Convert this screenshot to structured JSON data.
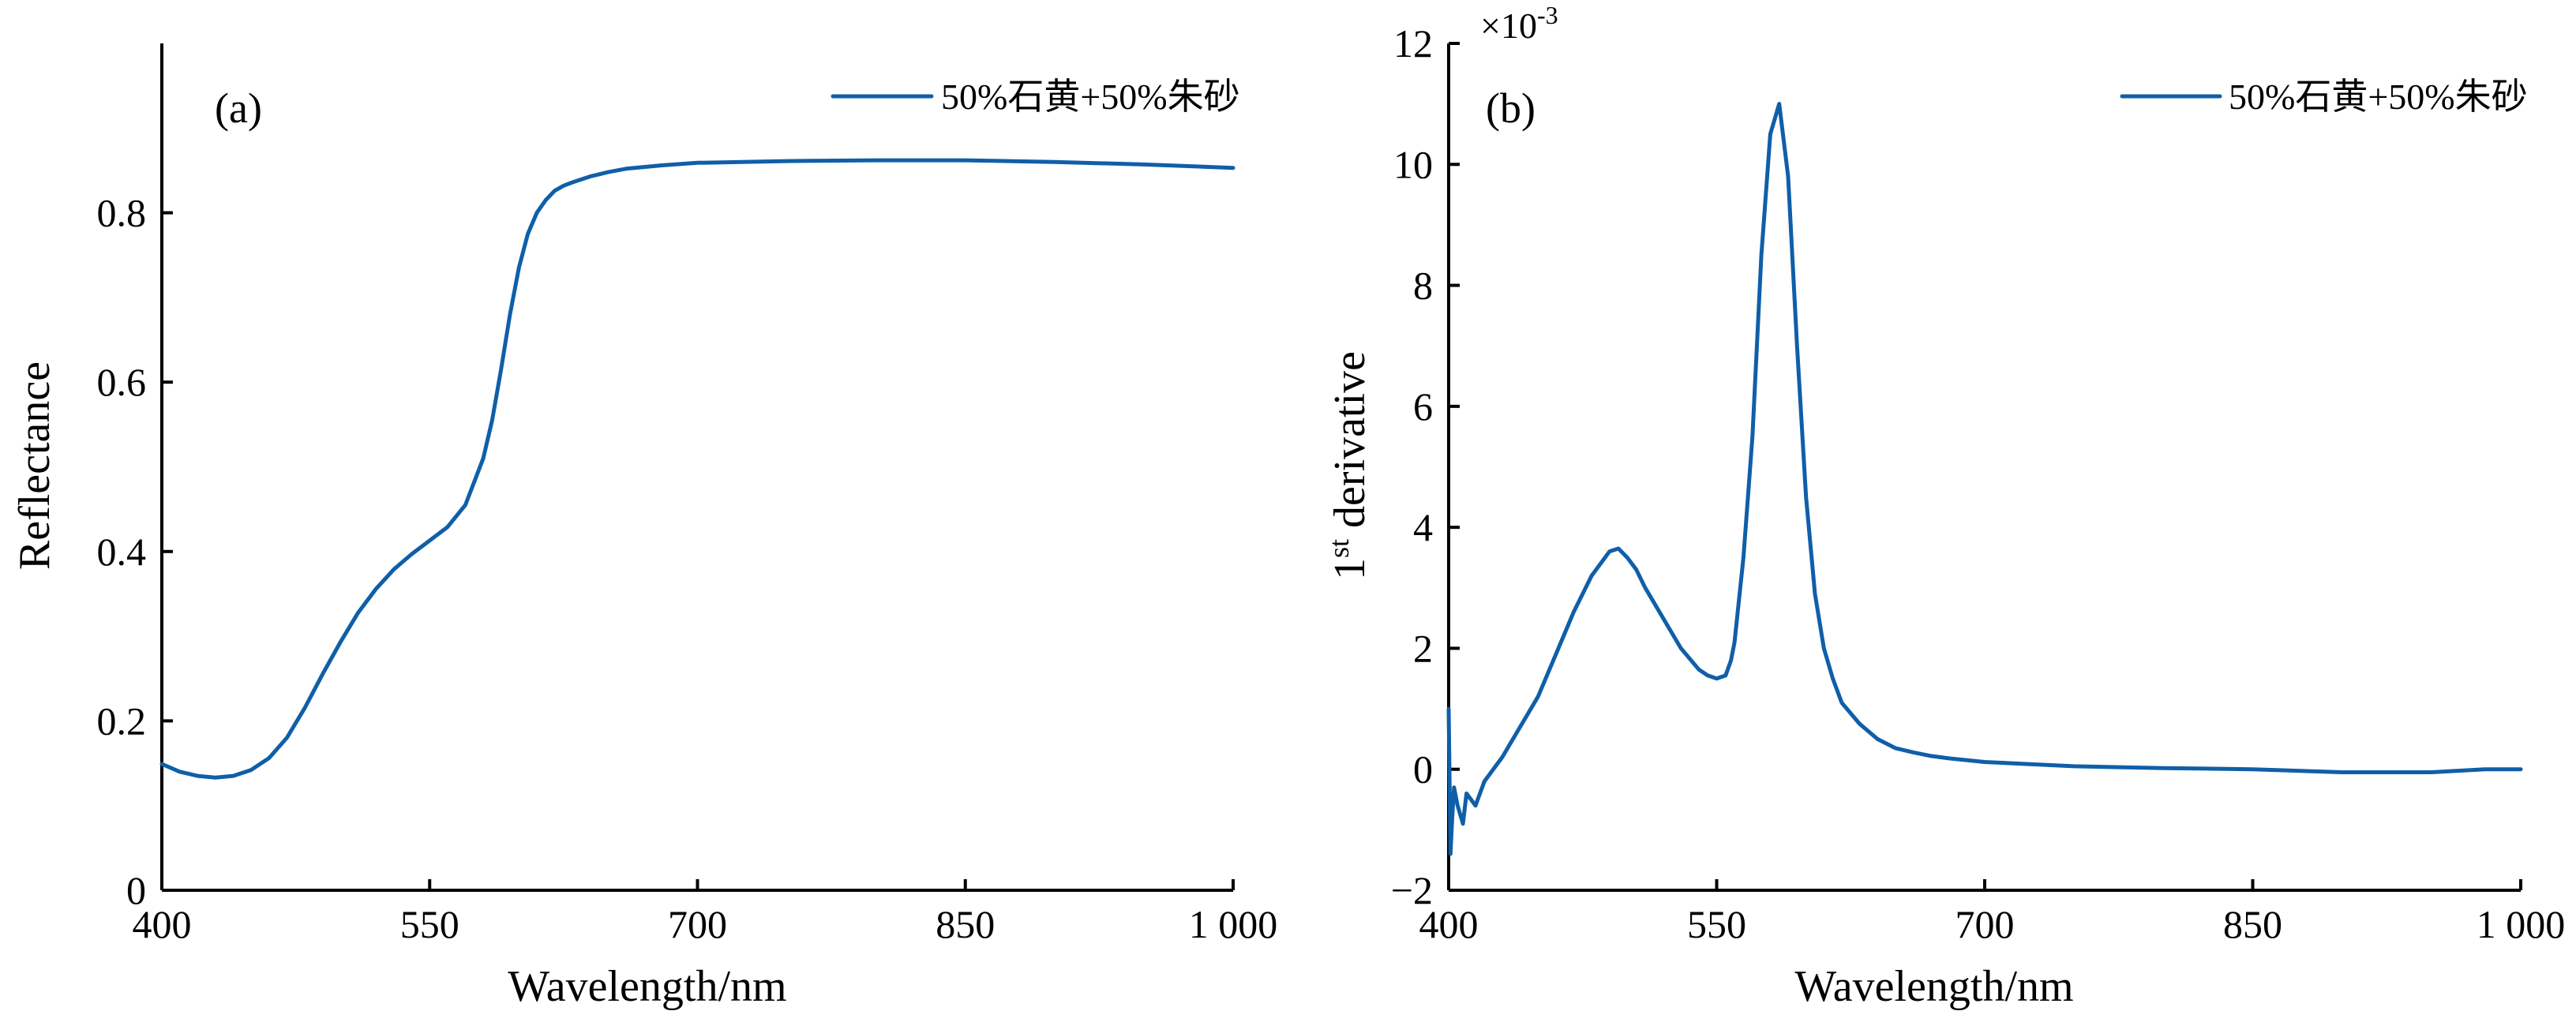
{
  "colors": {
    "series": "#0f5fa8",
    "axis": "#000000"
  },
  "chart_data": [
    {
      "type": "line",
      "panel_label": "(a)",
      "xlabel": "Wavelength/nm",
      "ylabel": "Reflectance",
      "xlim": [
        400,
        1000
      ],
      "ylim": [
        0,
        1.0
      ],
      "x_ticks": [
        400,
        550,
        700,
        850,
        1000
      ],
      "x_tick_labels": [
        "400",
        "550",
        "700",
        "850",
        "1 000"
      ],
      "y_ticks": [
        0,
        0.2,
        0.4,
        0.6,
        0.8
      ],
      "y_tick_labels": [
        "0",
        "0.2",
        "0.4",
        "0.6",
        "0.8"
      ],
      "grid": false,
      "legend": {
        "position": "top-right",
        "entries": [
          "50%石黄+50%朱砂"
        ]
      },
      "series": [
        {
          "name": "50%石黄+50%朱砂",
          "x": [
            400,
            410,
            420,
            430,
            440,
            450,
            460,
            470,
            480,
            490,
            500,
            510,
            520,
            530,
            540,
            550,
            560,
            570,
            580,
            585,
            590,
            595,
            600,
            605,
            610,
            615,
            620,
            625,
            630,
            640,
            650,
            660,
            680,
            700,
            750,
            800,
            850,
            900,
            950,
            1000
          ],
          "y": [
            0.149,
            0.14,
            0.135,
            0.133,
            0.135,
            0.142,
            0.156,
            0.18,
            0.215,
            0.255,
            0.293,
            0.328,
            0.356,
            0.379,
            0.397,
            0.413,
            0.429,
            0.455,
            0.51,
            0.555,
            0.615,
            0.68,
            0.735,
            0.775,
            0.8,
            0.815,
            0.826,
            0.832,
            0.836,
            0.843,
            0.848,
            0.852,
            0.856,
            0.859,
            0.861,
            0.862,
            0.862,
            0.86,
            0.857,
            0.853
          ]
        }
      ]
    },
    {
      "type": "line",
      "panel_label": "(b)",
      "xlabel": "Wavelength/nm",
      "ylabel_base": "1",
      "ylabel_sup": "st",
      "ylabel_rest": " derivative",
      "scale_note": "×10",
      "scale_exp": "-3",
      "xlim": [
        400,
        1000
      ],
      "ylim": [
        -2,
        12
      ],
      "x_ticks": [
        400,
        550,
        700,
        850,
        1000
      ],
      "x_tick_labels": [
        "400",
        "550",
        "700",
        "850",
        "1 000"
      ],
      "y_ticks": [
        -2,
        0,
        2,
        4,
        6,
        8,
        10,
        12
      ],
      "y_tick_labels": [
        "−2",
        "0",
        "2",
        "4",
        "6",
        "8",
        "10",
        "12"
      ],
      "grid": false,
      "legend": {
        "position": "top-right",
        "entries": [
          "50%石黄+50%朱砂"
        ]
      },
      "series": [
        {
          "name": "50%石黄+50%朱砂",
          "x": [
            400,
            401,
            402,
            403,
            405,
            408,
            410,
            415,
            420,
            430,
            440,
            450,
            460,
            470,
            480,
            490,
            495,
            500,
            505,
            510,
            520,
            530,
            540,
            545,
            550,
            555,
            558,
            560,
            565,
            570,
            575,
            580,
            585,
            590,
            595,
            600,
            605,
            610,
            615,
            620,
            630,
            640,
            650,
            660,
            670,
            680,
            700,
            750,
            800,
            850,
            900,
            950,
            980,
            1000
          ],
          "y": [
            1.0,
            -1.4,
            -0.8,
            -0.3,
            -0.6,
            -0.9,
            -0.4,
            -0.6,
            -0.2,
            0.2,
            0.7,
            1.2,
            1.9,
            2.6,
            3.2,
            3.6,
            3.65,
            3.5,
            3.3,
            3.0,
            2.5,
            2.0,
            1.65,
            1.55,
            1.5,
            1.55,
            1.8,
            2.1,
            3.5,
            5.5,
            8.5,
            10.5,
            11.0,
            9.8,
            7.0,
            4.5,
            2.9,
            2.0,
            1.5,
            1.1,
            0.75,
            0.5,
            0.35,
            0.28,
            0.22,
            0.18,
            0.12,
            0.05,
            0.02,
            0.0,
            -0.05,
            -0.05,
            0.0,
            0.0
          ]
        }
      ]
    }
  ]
}
